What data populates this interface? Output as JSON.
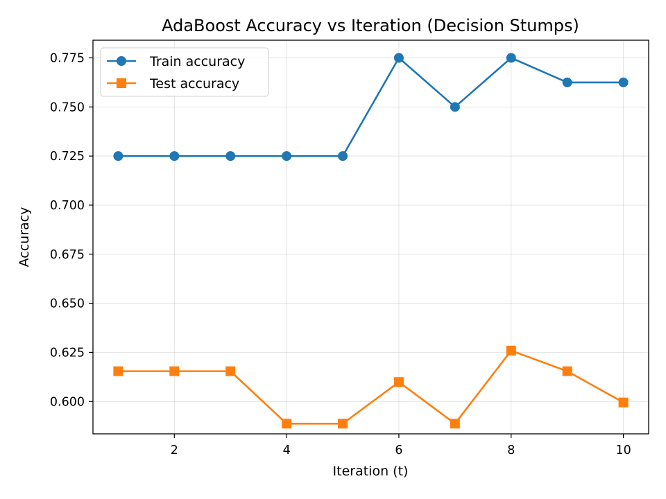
{
  "chart_data": {
    "type": "line",
    "title": "AdaBoost Accuracy vs Iteration (Decision Stumps)",
    "xlabel": "Iteration (t)",
    "ylabel": "Accuracy",
    "x": [
      1,
      2,
      3,
      4,
      5,
      6,
      7,
      8,
      9,
      10
    ],
    "xlim": [
      0.55,
      10.45
    ],
    "ylim": [
      0.5835,
      0.784
    ],
    "xticks": [
      2,
      4,
      6,
      8,
      10
    ],
    "yticks": [
      0.6,
      0.625,
      0.65,
      0.675,
      0.7,
      0.725,
      0.75,
      0.775
    ],
    "ytick_labels": [
      "0.600",
      "0.625",
      "0.650",
      "0.675",
      "0.700",
      "0.725",
      "0.750",
      "0.775"
    ],
    "grid": true,
    "legend_position": "top-left",
    "series": [
      {
        "name": "Train accuracy",
        "color": "#1f77b4",
        "marker": "circle",
        "values": [
          0.725,
          0.725,
          0.725,
          0.725,
          0.725,
          0.775,
          0.75,
          0.775,
          0.7625,
          0.7625
        ]
      },
      {
        "name": "Test accuracy",
        "color": "#ff7f0e",
        "marker": "square",
        "values": [
          0.6154,
          0.6154,
          0.6154,
          0.5887,
          0.5887,
          0.6099,
          0.5887,
          0.6259,
          0.6154,
          0.5995
        ]
      }
    ]
  }
}
